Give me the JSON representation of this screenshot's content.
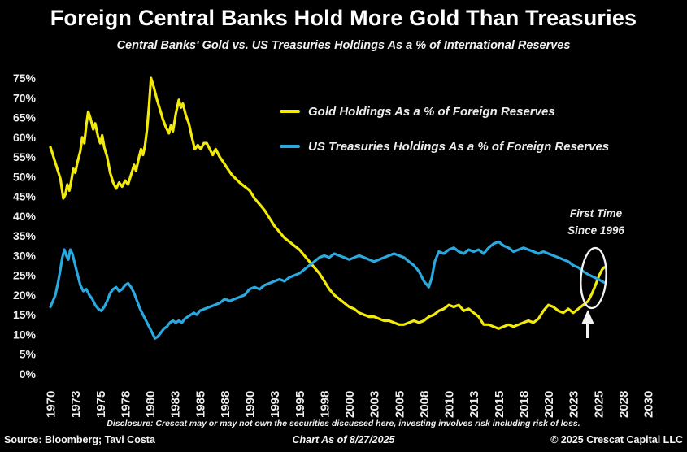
{
  "header": {
    "title": "Foreign Central Banks Hold More Gold Than Treasuries",
    "subtitle": "Central Banks' Gold vs. US Treasuries Holdings As a % of International Reserves"
  },
  "legend": [
    {
      "id": "gold",
      "label": "Gold Holdings As a % of Foreign Reserves",
      "color": "#f2ea0a"
    },
    {
      "id": "treasuries",
      "label": "US Treasuries Holdings As a % of Foreign Reserves",
      "color": "#2aa9e0"
    }
  ],
  "annotation": {
    "line1": "First Time",
    "line2": "Since 1996"
  },
  "footer": {
    "disclosure": "Disclosure: Crescat may or may not own the securities discussed here, investing involves risk including risk of loss.",
    "source": "Source: Bloomberg; Tavi Costa",
    "as_of": "Chart As of 8/27/2025",
    "copyright": "© 2025 Crescat Capital LLC"
  },
  "chart_data": {
    "type": "line",
    "title": "Foreign Central Banks Hold More Gold Than Treasuries",
    "subtitle": "Central Banks' Gold vs. US Treasuries Holdings As a % of International Reserves",
    "xlabel": "",
    "ylabel": "",
    "ylim": [
      0,
      75
    ],
    "xlim": [
      1970,
      2030
    ],
    "grid": false,
    "legend_position": "inside top-center",
    "y_ticks": [
      0,
      5,
      10,
      15,
      20,
      25,
      30,
      35,
      40,
      45,
      50,
      55,
      60,
      65,
      70,
      75
    ],
    "y_tick_suffix": "%",
    "x_tick_start_year": 1970,
    "x_tick_step_years": 2.5,
    "x_tick_labels": [
      "1970",
      "1973",
      "1975",
      "1978",
      "1980",
      "1983",
      "1985",
      "1988",
      "1990",
      "1993",
      "1995",
      "1998",
      "2000",
      "2003",
      "2005",
      "2008",
      "2010",
      "2013",
      "2015",
      "2018",
      "2020",
      "2023",
      "2025",
      "2028",
      "2030"
    ],
    "series": [
      {
        "id": "gold",
        "name": "Gold Holdings As a % of Foreign Reserves",
        "color": "#f2ea0a",
        "points": [
          [
            1970,
            57.5
          ],
          [
            1970.25,
            55.5
          ],
          [
            1970.5,
            53.5
          ],
          [
            1970.75,
            51.5
          ],
          [
            1971,
            49.5
          ],
          [
            1971.3,
            44.5
          ],
          [
            1971.5,
            45.5
          ],
          [
            1971.7,
            48
          ],
          [
            1971.9,
            46.5
          ],
          [
            1972.1,
            49
          ],
          [
            1972.3,
            52
          ],
          [
            1972.5,
            51
          ],
          [
            1972.7,
            53.5
          ],
          [
            1973,
            56.5
          ],
          [
            1973.2,
            60
          ],
          [
            1973.4,
            58.5
          ],
          [
            1973.6,
            63
          ],
          [
            1973.8,
            66.5
          ],
          [
            1974,
            65
          ],
          [
            1974.3,
            62
          ],
          [
            1974.5,
            63.5
          ],
          [
            1974.8,
            60
          ],
          [
            1975,
            58.5
          ],
          [
            1975.2,
            60.5
          ],
          [
            1975.4,
            57.5
          ],
          [
            1975.7,
            55
          ],
          [
            1976,
            51
          ],
          [
            1976.3,
            48.5
          ],
          [
            1976.6,
            47
          ],
          [
            1976.9,
            48.5
          ],
          [
            1977.2,
            47.5
          ],
          [
            1977.5,
            49
          ],
          [
            1977.8,
            48
          ],
          [
            1978.1,
            50.5
          ],
          [
            1978.4,
            53
          ],
          [
            1978.6,
            51.5
          ],
          [
            1978.9,
            55
          ],
          [
            1979.1,
            57
          ],
          [
            1979.3,
            55.5
          ],
          [
            1979.5,
            58
          ],
          [
            1979.7,
            62
          ],
          [
            1979.9,
            68
          ],
          [
            1980.1,
            75
          ],
          [
            1980.4,
            72.5
          ],
          [
            1980.7,
            69.5
          ],
          [
            1981,
            67
          ],
          [
            1981.3,
            64.5
          ],
          [
            1981.6,
            62.5
          ],
          [
            1981.9,
            61
          ],
          [
            1982.1,
            63
          ],
          [
            1982.3,
            61.5
          ],
          [
            1982.6,
            66
          ],
          [
            1982.9,
            69.5
          ],
          [
            1983.1,
            67.5
          ],
          [
            1983.3,
            68.5
          ],
          [
            1983.6,
            65.5
          ],
          [
            1983.9,
            63.5
          ],
          [
            1984.2,
            60
          ],
          [
            1984.5,
            57
          ],
          [
            1984.8,
            58
          ],
          [
            1985.1,
            57
          ],
          [
            1985.4,
            58.5
          ],
          [
            1985.7,
            58.5
          ],
          [
            1986,
            57
          ],
          [
            1986.3,
            55.5
          ],
          [
            1986.6,
            57
          ],
          [
            1987,
            55
          ],
          [
            1987.4,
            53.5
          ],
          [
            1987.8,
            52
          ],
          [
            1988.2,
            50.5
          ],
          [
            1988.6,
            49.5
          ],
          [
            1989,
            48.5
          ],
          [
            1989.5,
            47.5
          ],
          [
            1990,
            46.5
          ],
          [
            1990.5,
            44.5
          ],
          [
            1991,
            43
          ],
          [
            1991.5,
            41.5
          ],
          [
            1992,
            39.5
          ],
          [
            1992.5,
            37.5
          ],
          [
            1993,
            36
          ],
          [
            1993.5,
            34.5
          ],
          [
            1994,
            33.5
          ],
          [
            1994.5,
            32.5
          ],
          [
            1995,
            31.5
          ],
          [
            1995.5,
            30
          ],
          [
            1996,
            28.5
          ],
          [
            1996.5,
            27
          ],
          [
            1997,
            25.5
          ],
          [
            1997.5,
            23.5
          ],
          [
            1998,
            21.5
          ],
          [
            1998.5,
            20
          ],
          [
            1999,
            19
          ],
          [
            1999.5,
            18
          ],
          [
            2000,
            17
          ],
          [
            2000.5,
            16.5
          ],
          [
            2001,
            15.5
          ],
          [
            2001.5,
            15
          ],
          [
            2002,
            14.5
          ],
          [
            2002.5,
            14.5
          ],
          [
            2003,
            14
          ],
          [
            2003.5,
            13.5
          ],
          [
            2004,
            13.5
          ],
          [
            2004.5,
            13
          ],
          [
            2005,
            12.5
          ],
          [
            2005.5,
            12.5
          ],
          [
            2006,
            13
          ],
          [
            2006.5,
            13.5
          ],
          [
            2007,
            13
          ],
          [
            2007.5,
            13.5
          ],
          [
            2008,
            14.5
          ],
          [
            2008.5,
            15
          ],
          [
            2009,
            16
          ],
          [
            2009.5,
            16.5
          ],
          [
            2010,
            17.5
          ],
          [
            2010.5,
            17
          ],
          [
            2011,
            17.5
          ],
          [
            2011.5,
            16
          ],
          [
            2012,
            16.5
          ],
          [
            2012.5,
            15.5
          ],
          [
            2013,
            14.5
          ],
          [
            2013.5,
            12.5
          ],
          [
            2014,
            12.5
          ],
          [
            2014.5,
            12
          ],
          [
            2015,
            11.5
          ],
          [
            2015.5,
            12
          ],
          [
            2016,
            12.5
          ],
          [
            2016.5,
            12
          ],
          [
            2017,
            12.5
          ],
          [
            2017.5,
            13
          ],
          [
            2018,
            13.5
          ],
          [
            2018.5,
            13
          ],
          [
            2019,
            14
          ],
          [
            2019.5,
            16
          ],
          [
            2020,
            17.5
          ],
          [
            2020.5,
            17
          ],
          [
            2021,
            16
          ],
          [
            2021.5,
            15.5
          ],
          [
            2022,
            16.5
          ],
          [
            2022.5,
            15.5
          ],
          [
            2023,
            16.5
          ],
          [
            2023.5,
            17.5
          ],
          [
            2024,
            18.5
          ],
          [
            2024.4,
            20.5
          ],
          [
            2024.8,
            23
          ],
          [
            2025.1,
            25
          ],
          [
            2025.4,
            26.5
          ],
          [
            2025.6,
            27
          ]
        ]
      },
      {
        "id": "treasuries",
        "name": "US Treasuries Holdings As a % of Foreign Reserves",
        "color": "#2aa9e0",
        "points": [
          [
            1970,
            17
          ],
          [
            1970.25,
            18.5
          ],
          [
            1970.5,
            20
          ],
          [
            1970.75,
            23
          ],
          [
            1971,
            26.5
          ],
          [
            1971.2,
            29.5
          ],
          [
            1971.4,
            31.5
          ],
          [
            1971.6,
            30
          ],
          [
            1971.8,
            29
          ],
          [
            1972,
            31.5
          ],
          [
            1972.2,
            30.5
          ],
          [
            1972.5,
            27.5
          ],
          [
            1972.8,
            24.5
          ],
          [
            1973,
            22.5
          ],
          [
            1973.3,
            21
          ],
          [
            1973.6,
            21.5
          ],
          [
            1973.9,
            20
          ],
          [
            1974.2,
            19
          ],
          [
            1974.5,
            17.5
          ],
          [
            1974.8,
            16.5
          ],
          [
            1975.1,
            16
          ],
          [
            1975.4,
            17
          ],
          [
            1975.7,
            18.5
          ],
          [
            1976,
            20.5
          ],
          [
            1976.3,
            21.5
          ],
          [
            1976.6,
            22
          ],
          [
            1976.9,
            21
          ],
          [
            1977.2,
            21.5
          ],
          [
            1977.5,
            22.5
          ],
          [
            1977.8,
            23
          ],
          [
            1978.1,
            22
          ],
          [
            1978.4,
            20.5
          ],
          [
            1978.7,
            18.5
          ],
          [
            1979,
            16.5
          ],
          [
            1979.3,
            15
          ],
          [
            1979.6,
            13.5
          ],
          [
            1979.9,
            12
          ],
          [
            1980.2,
            10.5
          ],
          [
            1980.5,
            9
          ],
          [
            1980.8,
            9.5
          ],
          [
            1981.1,
            10.5
          ],
          [
            1981.4,
            11.5
          ],
          [
            1981.7,
            12
          ],
          [
            1982,
            13
          ],
          [
            1982.3,
            13.5
          ],
          [
            1982.6,
            13
          ],
          [
            1982.9,
            13.5
          ],
          [
            1983.2,
            13
          ],
          [
            1983.5,
            14
          ],
          [
            1983.8,
            14.5
          ],
          [
            1984.1,
            15
          ],
          [
            1984.4,
            15.5
          ],
          [
            1984.7,
            15
          ],
          [
            1985,
            16
          ],
          [
            1985.5,
            16.5
          ],
          [
            1986,
            17
          ],
          [
            1986.5,
            17.5
          ],
          [
            1987,
            18
          ],
          [
            1987.5,
            19
          ],
          [
            1988,
            18.5
          ],
          [
            1988.5,
            19
          ],
          [
            1989,
            19.5
          ],
          [
            1989.5,
            20
          ],
          [
            1990,
            21.5
          ],
          [
            1990.5,
            22
          ],
          [
            1991,
            21.5
          ],
          [
            1991.5,
            22.5
          ],
          [
            1992,
            23
          ],
          [
            1992.5,
            23.5
          ],
          [
            1993,
            24
          ],
          [
            1993.5,
            23.5
          ],
          [
            1994,
            24.5
          ],
          [
            1994.5,
            25
          ],
          [
            1995,
            25.5
          ],
          [
            1995.5,
            26.5
          ],
          [
            1996,
            27.5
          ],
          [
            1996.5,
            28.5
          ],
          [
            1997,
            29.5
          ],
          [
            1997.5,
            30
          ],
          [
            1998,
            29.5
          ],
          [
            1998.5,
            30.5
          ],
          [
            1999,
            30
          ],
          [
            1999.5,
            29.5
          ],
          [
            2000,
            29
          ],
          [
            2000.5,
            29.5
          ],
          [
            2001,
            30
          ],
          [
            2001.5,
            29.5
          ],
          [
            2002,
            29
          ],
          [
            2002.5,
            28.5
          ],
          [
            2003,
            29
          ],
          [
            2003.5,
            29.5
          ],
          [
            2004,
            30
          ],
          [
            2004.5,
            30.5
          ],
          [
            2005,
            30
          ],
          [
            2005.5,
            29.5
          ],
          [
            2006,
            28.5
          ],
          [
            2006.5,
            27.5
          ],
          [
            2007,
            26
          ],
          [
            2007.5,
            23.5
          ],
          [
            2008,
            22
          ],
          [
            2008.3,
            24.5
          ],
          [
            2008.6,
            28.5
          ],
          [
            2009,
            31
          ],
          [
            2009.5,
            30.5
          ],
          [
            2010,
            31.5
          ],
          [
            2010.5,
            32
          ],
          [
            2011,
            31
          ],
          [
            2011.5,
            30.5
          ],
          [
            2012,
            31.5
          ],
          [
            2012.5,
            31
          ],
          [
            2013,
            31.5
          ],
          [
            2013.5,
            30.5
          ],
          [
            2014,
            32
          ],
          [
            2014.5,
            33
          ],
          [
            2015,
            33.5
          ],
          [
            2015.5,
            32.5
          ],
          [
            2016,
            32
          ],
          [
            2016.5,
            31
          ],
          [
            2017,
            31.5
          ],
          [
            2017.5,
            32
          ],
          [
            2018,
            31.5
          ],
          [
            2018.5,
            31
          ],
          [
            2019,
            30.5
          ],
          [
            2019.5,
            31
          ],
          [
            2020,
            30.5
          ],
          [
            2020.5,
            30
          ],
          [
            2021,
            29.5
          ],
          [
            2021.5,
            29
          ],
          [
            2022,
            28.5
          ],
          [
            2022.5,
            27.5
          ],
          [
            2023,
            27
          ],
          [
            2023.5,
            26
          ],
          [
            2024,
            25.2
          ],
          [
            2024.5,
            24.6
          ],
          [
            2025,
            24
          ],
          [
            2025.6,
            23.2
          ]
        ]
      }
    ],
    "annotations": [
      {
        "text": "First Time Since 1996",
        "target": "crossover of gold above treasuries",
        "target_year": 2024.8,
        "target_value": 24
      }
    ]
  }
}
